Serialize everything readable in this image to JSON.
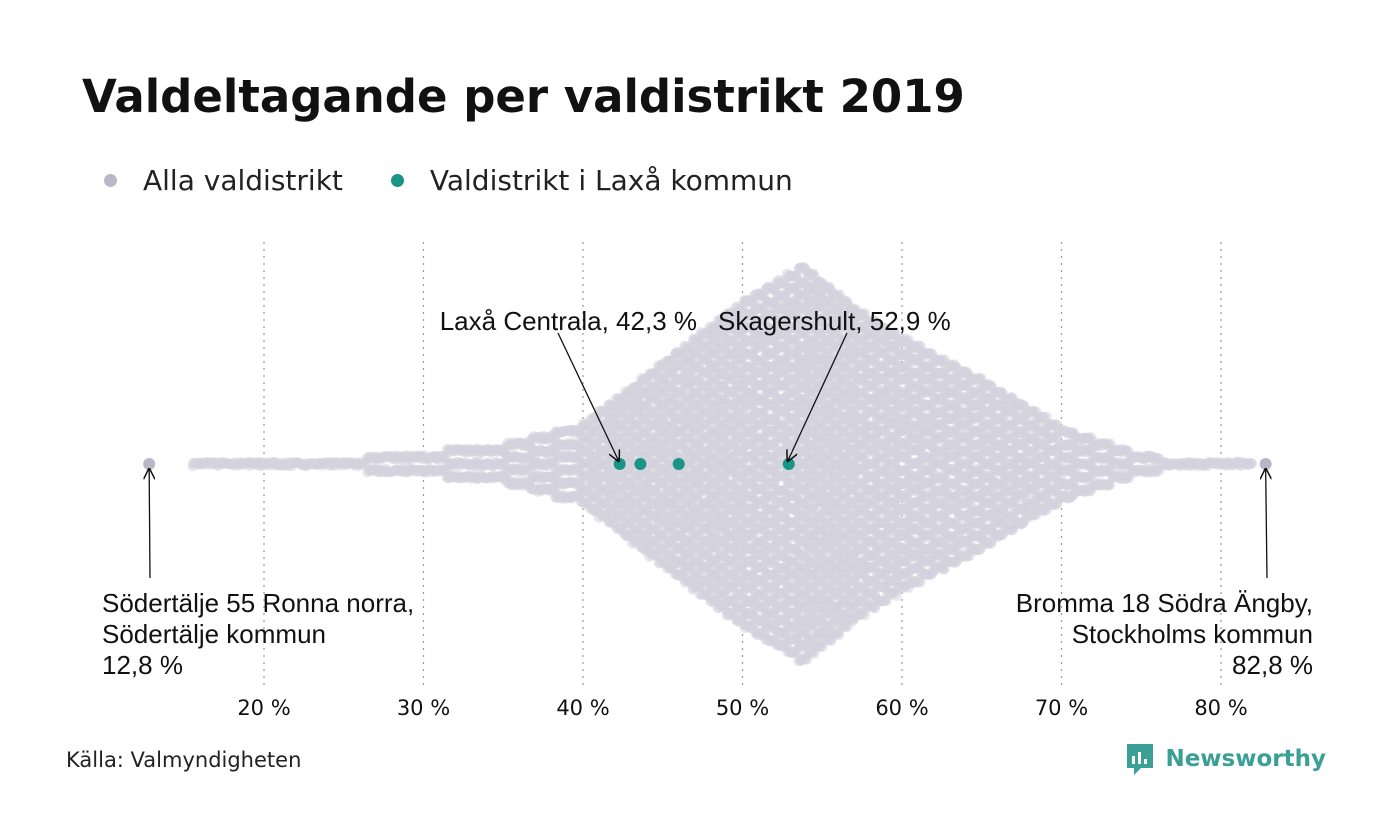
{
  "title": "Valdeltagande per valdistrikt 2019",
  "legend": [
    {
      "label": "Alla valdistrikt",
      "color": "#b9b7c6"
    },
    {
      "label": "Valdistrikt i Laxå kommun",
      "color": "#1a9484"
    }
  ],
  "source": "Källa: Valmyndigheten",
  "brand": "Newsworthy",
  "colors": {
    "all": "#b9b7c6",
    "cloud": "#d3d2dc",
    "highlight": "#1a9484",
    "grid": "#9a9a9a",
    "brand": "#3a9f94"
  },
  "chart_data": {
    "type": "scatter",
    "subtype": "beeswarm",
    "x_ticks": [
      20,
      30,
      40,
      50,
      60,
      70,
      80
    ],
    "x_tick_labels": [
      "20 %",
      "30 %",
      "40 %",
      "50 %",
      "60 %",
      "70 %",
      "80 %"
    ],
    "xlim": [
      12,
      84
    ],
    "grid": "vertical dotted",
    "series": [
      {
        "name": "Alla valdistrikt",
        "min": 12.8,
        "max": 82.8,
        "peak": 53.8
      },
      {
        "name": "Valdistrikt i Laxå kommun",
        "values": [
          42.3,
          43.6,
          46.0,
          52.9
        ]
      }
    ],
    "annotations": [
      {
        "lines": [
          "Laxå Centrala, 42,3 %"
        ],
        "x": 42.3
      },
      {
        "lines": [
          "Skagershult, 52,9 %"
        ],
        "x": 52.9
      },
      {
        "lines": [
          "Södertälje 55 Ronna norra,",
          "Södertälje kommun",
          "12,8 %"
        ],
        "x": 12.8
      },
      {
        "lines": [
          "Bromma 18 Södra Ängby,",
          "Stockholms kommun",
          "82,8 %"
        ],
        "x": 82.8
      }
    ]
  }
}
